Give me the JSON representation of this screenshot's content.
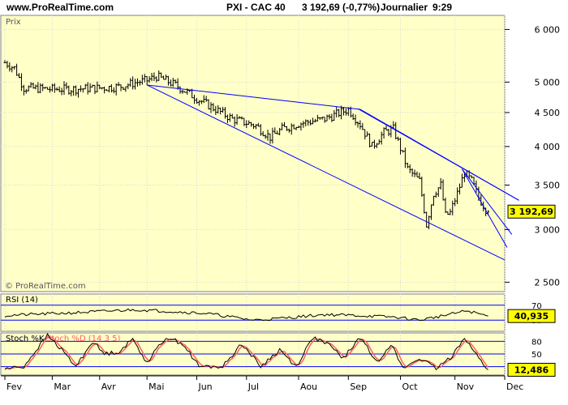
{
  "header": {
    "site": "www.ProRealTime.com",
    "instrument": "PXI - CAC 40",
    "quote": "3 192,69 (-0,77%)",
    "period": "Journalier",
    "time": "9:29"
  },
  "colors": {
    "panel_bg": "#ffffc8",
    "bar": "#000000",
    "trendline": "#0000ff",
    "grid": "#d9d9d9",
    "stoch_d": "#ff6060",
    "label_box": "#ffff00"
  },
  "chart_data": [
    {
      "type": "ohlc",
      "label": "Prix",
      "watermark": "© ProRealTime.com",
      "scale": "log",
      "ylim": [
        2420,
        6300
      ],
      "yticks": [
        {
          "v": 6000,
          "label": "6 000"
        },
        {
          "v": 5000,
          "label": "5 000"
        },
        {
          "v": 4500,
          "label": "4 500"
        },
        {
          "v": 4000,
          "label": "4 000"
        },
        {
          "v": 3500,
          "label": "3 500"
        },
        {
          "v": 3000,
          "label": "3 000"
        },
        {
          "v": 2500,
          "label": "2 500"
        }
      ],
      "last_value_label": "3 192,69",
      "last_value": 3192.69,
      "xticks": [
        "Fev",
        "Mar",
        "Avr",
        "Mai",
        "Jun",
        "Jul",
        "Aou",
        "Sep",
        "Oct",
        "Nov",
        "Dec"
      ],
      "month_index": [
        0,
        20,
        40,
        60,
        81,
        102,
        124,
        145,
        167,
        190,
        211
      ],
      "key_closes": [
        [
          0,
          5350
        ],
        [
          4,
          5250
        ],
        [
          8,
          4900
        ],
        [
          20,
          4880
        ],
        [
          28,
          4880
        ],
        [
          40,
          4900
        ],
        [
          48,
          4920
        ],
        [
          56,
          5000
        ],
        [
          60,
          5030
        ],
        [
          64,
          5100
        ],
        [
          72,
          4950
        ],
        [
          82,
          4700
        ],
        [
          96,
          4400
        ],
        [
          106,
          4300
        ],
        [
          112,
          4130
        ],
        [
          117,
          4250
        ],
        [
          124,
          4330
        ],
        [
          135,
          4400
        ],
        [
          145,
          4550
        ],
        [
          150,
          4320
        ],
        [
          155,
          4000
        ],
        [
          160,
          4200
        ],
        [
          164,
          4250
        ],
        [
          170,
          3700
        ],
        [
          175,
          3550
        ],
        [
          178,
          3050
        ],
        [
          181,
          3400
        ],
        [
          184,
          3500
        ],
        [
          186,
          3150
        ],
        [
          188,
          3180
        ],
        [
          191,
          3400
        ],
        [
          194,
          3650
        ],
        [
          197,
          3550
        ],
        [
          200,
          3350
        ],
        [
          203,
          3220
        ],
        [
          204,
          3192.69
        ]
      ],
      "channels": [
        {
          "name": "channel-1-upper",
          "points": [
            [
              60,
              4950
            ],
            [
              150,
              4550
            ],
            [
              217,
              3320
            ]
          ]
        },
        {
          "name": "channel-1-lower",
          "points": [
            [
              60,
              4950
            ],
            [
              211,
              2700
            ]
          ]
        },
        {
          "name": "channel-2-upper",
          "points": [
            [
              149,
              4560
            ],
            [
              217,
              3320
            ]
          ]
        },
        {
          "name": "channel-3",
          "points": [
            [
              193,
              3700
            ],
            [
              214,
              2950
            ]
          ]
        },
        {
          "name": "channel-4",
          "points": [
            [
              193,
              3700
            ],
            [
              212,
              2820
            ]
          ]
        }
      ]
    },
    {
      "type": "line",
      "label": "RSI (14)",
      "ylim": [
        0,
        100
      ],
      "yticks": [
        {
          "v": 70,
          "label": "70"
        },
        {
          "v": 30,
          "label": "30"
        }
      ],
      "last_value_label": "40,935",
      "last_value": 40.935,
      "key_values": [
        [
          0,
          42
        ],
        [
          10,
          45
        ],
        [
          30,
          50
        ],
        [
          55,
          58
        ],
        [
          65,
          55
        ],
        [
          85,
          48
        ],
        [
          105,
          30
        ],
        [
          115,
          34
        ],
        [
          135,
          45
        ],
        [
          150,
          42
        ],
        [
          165,
          38
        ],
        [
          175,
          30
        ],
        [
          185,
          42
        ],
        [
          195,
          55
        ],
        [
          204,
          41
        ]
      ]
    },
    {
      "type": "line",
      "label": "Stoch %K",
      "label_d": "Stoch %D (14 3 5)",
      "ylim": [
        0,
        100
      ],
      "yticks": [
        {
          "v": 80,
          "label": "80"
        },
        {
          "v": 50,
          "label": "50"
        },
        {
          "v": 20,
          "label": "20"
        }
      ],
      "last_value_label": "12,486",
      "last_value": 12.486,
      "key_values": [
        [
          0,
          15
        ],
        [
          8,
          20
        ],
        [
          18,
          95
        ],
        [
          24,
          60
        ],
        [
          30,
          20
        ],
        [
          37,
          80
        ],
        [
          42,
          50
        ],
        [
          48,
          55
        ],
        [
          54,
          85
        ],
        [
          60,
          30
        ],
        [
          68,
          90
        ],
        [
          75,
          75
        ],
        [
          82,
          20
        ],
        [
          92,
          20
        ],
        [
          100,
          75
        ],
        [
          108,
          20
        ],
        [
          116,
          60
        ],
        [
          123,
          20
        ],
        [
          130,
          90
        ],
        [
          137,
          70
        ],
        [
          143,
          40
        ],
        [
          150,
          90
        ],
        [
          157,
          30
        ],
        [
          163,
          75
        ],
        [
          168,
          15
        ],
        [
          175,
          40
        ],
        [
          182,
          15
        ],
        [
          188,
          40
        ],
        [
          194,
          90
        ],
        [
          200,
          40
        ],
        [
          204,
          12
        ]
      ]
    }
  ]
}
